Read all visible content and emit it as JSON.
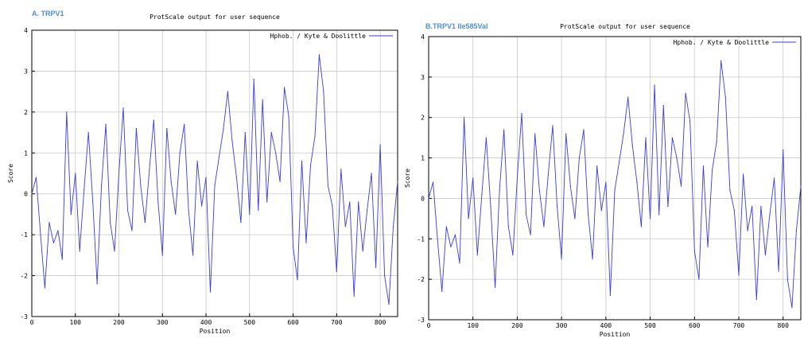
{
  "chart_data": [
    {
      "type": "line",
      "panel_label": "A. TRPV1",
      "title": "ProtScale output for user sequence",
      "xlabel": "Position",
      "ylabel": "Score",
      "xlim": [
        0,
        840
      ],
      "ylim": [
        -3,
        4
      ],
      "xticks": [
        0,
        100,
        200,
        300,
        400,
        500,
        600,
        700,
        800
      ],
      "yticks": [
        -3,
        -2,
        -1,
        0,
        1,
        2,
        3,
        4
      ],
      "grid": true,
      "legend_position": "top-right",
      "series": [
        {
          "name": "Hphob. / Kyte & Doolittle",
          "color": "#3b3bdc",
          "x": [
            0,
            10,
            20,
            30,
            40,
            50,
            60,
            70,
            80,
            90,
            100,
            110,
            120,
            130,
            140,
            150,
            160,
            170,
            180,
            190,
            200,
            210,
            220,
            230,
            240,
            250,
            260,
            270,
            280,
            290,
            300,
            310,
            320,
            330,
            340,
            350,
            360,
            370,
            380,
            390,
            400,
            410,
            420,
            430,
            440,
            450,
            460,
            470,
            480,
            490,
            500,
            510,
            520,
            530,
            540,
            550,
            560,
            570,
            580,
            590,
            600,
            610,
            620,
            630,
            640,
            650,
            660,
            670,
            680,
            690,
            700,
            710,
            720,
            730,
            740,
            750,
            760,
            770,
            780,
            790,
            800,
            810,
            820,
            830,
            840
          ],
          "y": [
            0.0,
            0.4,
            -1.0,
            -2.3,
            -0.7,
            -1.2,
            -0.9,
            -1.6,
            2.0,
            -0.5,
            0.5,
            -1.4,
            0.1,
            1.5,
            -0.2,
            -2.2,
            0.2,
            1.7,
            -0.7,
            -1.4,
            0.5,
            2.1,
            -0.4,
            -0.9,
            1.6,
            0.2,
            -0.7,
            0.6,
            1.8,
            -0.2,
            -1.5,
            1.6,
            0.3,
            -0.5,
            1.0,
            1.7,
            -0.4,
            -1.5,
            0.8,
            -0.3,
            0.4,
            -2.4,
            0.2,
            0.9,
            1.6,
            2.5,
            1.3,
            0.4,
            -0.7,
            1.5,
            -0.5,
            2.8,
            -0.4,
            2.3,
            -0.2,
            1.5,
            1.0,
            0.3,
            2.6,
            1.9,
            -1.3,
            -2.1,
            0.8,
            -1.2,
            0.7,
            1.4,
            3.4,
            2.5,
            0.2,
            -0.3,
            -1.9,
            0.6,
            -0.8,
            -0.2,
            -2.5,
            -0.2,
            -1.4,
            -0.4,
            0.5,
            -1.8,
            1.2,
            -2.0,
            -2.7,
            -0.8,
            0.3
          ]
        }
      ]
    },
    {
      "type": "line",
      "panel_label": "B.TRPV1 Ile585Val",
      "title": "ProtScale output for user sequence",
      "xlabel": "Position",
      "ylabel": "Score",
      "xlim": [
        0,
        840
      ],
      "ylim": [
        -3,
        4
      ],
      "xticks": [
        0,
        100,
        200,
        300,
        400,
        500,
        600,
        700,
        800
      ],
      "yticks": [
        -3,
        -2,
        -1,
        0,
        1,
        2,
        3,
        4
      ],
      "grid": true,
      "legend_position": "top-right",
      "series": [
        {
          "name": "Hphob. / Kyte & Doolittle",
          "color": "#3b3bdc",
          "x": [
            0,
            10,
            20,
            30,
            40,
            50,
            60,
            70,
            80,
            90,
            100,
            110,
            120,
            130,
            140,
            150,
            160,
            170,
            180,
            190,
            200,
            210,
            220,
            230,
            240,
            250,
            260,
            270,
            280,
            290,
            300,
            310,
            320,
            330,
            340,
            350,
            360,
            370,
            380,
            390,
            400,
            410,
            420,
            430,
            440,
            450,
            460,
            470,
            480,
            490,
            500,
            510,
            520,
            530,
            540,
            550,
            560,
            570,
            580,
            590,
            600,
            610,
            620,
            630,
            640,
            650,
            660,
            670,
            680,
            690,
            700,
            710,
            720,
            730,
            740,
            750,
            760,
            770,
            780,
            790,
            800,
            810,
            820,
            830,
            840
          ],
          "y": [
            0.0,
            0.4,
            -1.0,
            -2.3,
            -0.7,
            -1.2,
            -0.9,
            -1.6,
            2.0,
            -0.5,
            0.5,
            -1.4,
            0.1,
            1.5,
            -0.2,
            -2.2,
            0.2,
            1.7,
            -0.7,
            -1.4,
            0.5,
            2.1,
            -0.4,
            -0.9,
            1.6,
            0.2,
            -0.7,
            0.6,
            1.8,
            -0.2,
            -1.5,
            1.6,
            0.3,
            -0.5,
            1.0,
            1.7,
            -0.4,
            -1.5,
            0.8,
            -0.3,
            0.4,
            -2.4,
            0.2,
            0.9,
            1.6,
            2.5,
            1.3,
            0.4,
            -0.7,
            1.5,
            -0.5,
            2.8,
            -0.4,
            2.3,
            -0.2,
            1.5,
            1.0,
            0.3,
            2.6,
            1.9,
            -1.3,
            -2.0,
            0.8,
            -1.2,
            0.7,
            1.4,
            3.4,
            2.5,
            0.2,
            -0.3,
            -1.9,
            0.6,
            -0.8,
            -0.2,
            -2.5,
            -0.2,
            -1.4,
            -0.4,
            0.5,
            -1.8,
            1.2,
            -2.0,
            -2.7,
            -0.8,
            0.3
          ]
        }
      ]
    }
  ]
}
